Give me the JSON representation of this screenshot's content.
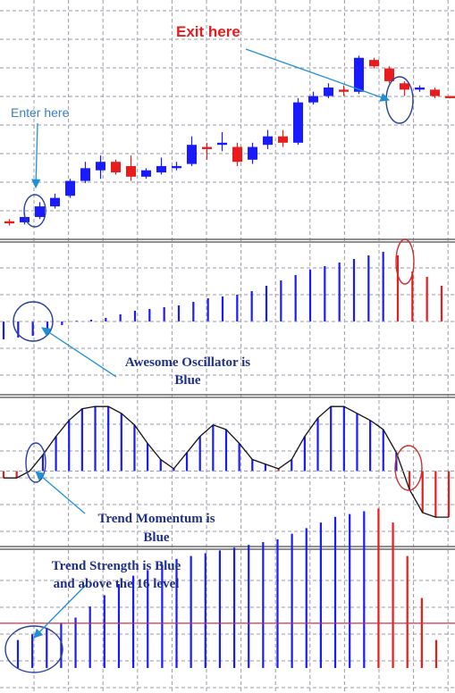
{
  "colors": {
    "bull": "#1a1aff",
    "bear": "#e81c1c",
    "grid": "#9a9aa8",
    "separator": "#6c6c6c",
    "level_line": "#c8334a",
    "annotation_blue": "#1f8fd6",
    "annotation_text_blue": "#3a7fc2",
    "ellipse_blue": "#2a3f9c",
    "ellipse_red": "#c83232",
    "navy_text": "#1f2f85",
    "curve": "#111111"
  },
  "annotations": {
    "exit": "Exit here",
    "enter": "Enter here",
    "ao_line1": "Awesome Oscillator is",
    "ao_line2": "Blue",
    "tm_line1": "Trend Momentum is",
    "tm_line2": "Blue",
    "ts_line1": "Trend Strength is Blue",
    "ts_line2": "and above the 16 level"
  },
  "chart_data": [
    {
      "type": "candlestick",
      "panel": "price",
      "candles": [
        {
          "open": 20,
          "close": 21,
          "high": 22,
          "low": 19,
          "color": "bear"
        },
        {
          "open": 20.5,
          "close": 23,
          "high": 25,
          "low": 19.5,
          "color": "bull"
        },
        {
          "open": 23,
          "close": 28,
          "high": 30,
          "low": 22,
          "color": "bull"
        },
        {
          "open": 28,
          "close": 32,
          "high": 34,
          "low": 27,
          "color": "bull"
        },
        {
          "open": 33,
          "close": 40,
          "high": 41,
          "low": 32,
          "color": "bull"
        },
        {
          "open": 40,
          "close": 46,
          "high": 49,
          "low": 39,
          "color": "bull"
        },
        {
          "open": 45,
          "close": 49,
          "high": 52,
          "low": 41,
          "color": "bull"
        },
        {
          "open": 49,
          "close": 44,
          "high": 50,
          "low": 43,
          "color": "bear"
        },
        {
          "open": 47,
          "close": 42,
          "high": 52,
          "low": 40,
          "color": "bear"
        },
        {
          "open": 42,
          "close": 45,
          "high": 46,
          "low": 41,
          "color": "bull"
        },
        {
          "open": 44,
          "close": 47,
          "high": 51,
          "low": 43,
          "color": "bull"
        },
        {
          "open": 46,
          "close": 47,
          "high": 49,
          "low": 45,
          "color": "bull"
        },
        {
          "open": 48,
          "close": 57,
          "high": 61,
          "low": 47,
          "color": "bull"
        },
        {
          "open": 56,
          "close": 55,
          "high": 58,
          "low": 50,
          "color": "bear"
        },
        {
          "open": 57,
          "close": 58,
          "high": 63,
          "low": 54,
          "color": "bull"
        },
        {
          "open": 56,
          "close": 49,
          "high": 58,
          "low": 47,
          "color": "bear"
        },
        {
          "open": 50,
          "close": 56,
          "high": 58,
          "low": 48,
          "color": "bull"
        },
        {
          "open": 57,
          "close": 61,
          "high": 64,
          "low": 55,
          "color": "bull"
        },
        {
          "open": 61,
          "close": 58,
          "high": 64,
          "low": 56,
          "color": "bear"
        },
        {
          "open": 58,
          "close": 77,
          "high": 79,
          "low": 57,
          "color": "bull"
        },
        {
          "open": 77,
          "close": 80,
          "high": 82,
          "low": 76,
          "color": "bull"
        },
        {
          "open": 80,
          "close": 84,
          "high": 86,
          "low": 79,
          "color": "bull"
        },
        {
          "open": 83,
          "close": 82,
          "high": 85,
          "low": 80,
          "color": "bear"
        },
        {
          "open": 82,
          "close": 98,
          "high": 99,
          "low": 81,
          "color": "bull"
        },
        {
          "open": 97,
          "close": 94,
          "high": 98,
          "low": 93,
          "color": "bear"
        },
        {
          "open": 93,
          "close": 87,
          "high": 94,
          "low": 86,
          "color": "bear"
        },
        {
          "open": 86,
          "close": 83,
          "high": 87,
          "low": 80,
          "color": "bear"
        },
        {
          "open": 83,
          "close": 84,
          "high": 85,
          "low": 82,
          "color": "bull"
        },
        {
          "open": 83,
          "close": 80,
          "high": 84,
          "low": 79,
          "color": "bear"
        },
        {
          "open": 80,
          "close": 79,
          "high": 80,
          "low": 79,
          "color": "bear"
        }
      ]
    },
    {
      "type": "bar",
      "panel": "awesome_oscillator",
      "ylim": [
        -10,
        40
      ],
      "zero": 0,
      "values": [
        -10,
        -9,
        -8,
        -6,
        -2,
        0.5,
        1,
        2,
        4,
        6,
        7,
        8,
        9,
        11,
        13,
        14,
        15,
        17,
        20,
        23,
        26,
        29,
        31,
        33,
        35,
        37,
        39,
        37,
        28,
        25,
        20
      ],
      "colors": [
        "bull",
        "bull",
        "bull",
        "bull",
        "bull",
        "bull",
        "bull",
        "bull",
        "bull",
        "bull",
        "bull",
        "bull",
        "bull",
        "bull",
        "bull",
        "bull",
        "bull",
        "bull",
        "bull",
        "bull",
        "bull",
        "bull",
        "bull",
        "bull",
        "bull",
        "bull",
        "bull",
        "bear",
        "bear",
        "bear",
        "bear"
      ]
    },
    {
      "type": "bar",
      "panel": "trend_momentum",
      "ylim": [
        -25,
        30
      ],
      "zero": 0,
      "values": [
        -3,
        -3,
        0,
        7,
        15,
        22,
        27,
        28,
        28,
        25,
        20,
        12,
        5,
        1,
        8,
        15,
        20,
        18,
        12,
        5,
        3,
        1,
        5,
        15,
        23,
        28,
        28,
        25,
        22,
        18,
        8,
        -8,
        -18,
        -20,
        -20
      ],
      "colors": [
        "bear",
        "bear",
        "bull",
        "bull",
        "bull",
        "bull",
        "bull",
        "bull",
        "bull",
        "bull",
        "bull",
        "bull",
        "bull",
        "bull",
        "bull",
        "bull",
        "bull",
        "bull",
        "bull",
        "bull",
        "bull",
        "bear",
        "bull",
        "bull",
        "bull",
        "bull",
        "bull",
        "bull",
        "bull",
        "bull",
        "bull",
        "bear",
        "bear",
        "bear",
        "bear"
      ]
    },
    {
      "type": "bar",
      "panel": "trend_strength",
      "ylim": [
        0,
        60
      ],
      "level": 16,
      "values": [
        10,
        12,
        14,
        16,
        18,
        22,
        26,
        30,
        33,
        35,
        37,
        39,
        40,
        41,
        42,
        43,
        44,
        45,
        46,
        48,
        50,
        52,
        54,
        55,
        56,
        57,
        52,
        40,
        25,
        10
      ],
      "colors": [
        "bull",
        "bull",
        "bull",
        "bull",
        "bull",
        "bull",
        "bull",
        "bull",
        "bull",
        "bull",
        "bull",
        "bull",
        "bull",
        "bull",
        "bull",
        "bull",
        "bull",
        "bull",
        "bull",
        "bull",
        "bull",
        "bull",
        "bull",
        "bull",
        "bull",
        "bear",
        "bear",
        "bear",
        "bear",
        "bear"
      ]
    }
  ]
}
